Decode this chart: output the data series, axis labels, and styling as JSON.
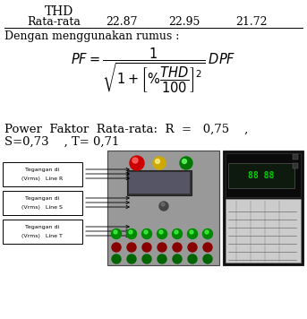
{
  "title_thd": "THD",
  "row_label": "Rata-rata",
  "values": [
    "22.87",
    "22.95",
    "21.72"
  ],
  "formula_text": "Dengan menggunakan rumus :",
  "power_factor_line1": "Power  Faktor  Rata-rata:  R  =   0,75    ,",
  "power_factor_line2": "S=0,73    , T= 0,71",
  "box_labels": [
    "Tegangan di\n(Vrms)   Line R",
    "Tegangan di\n(Vrms)   Line S",
    "Tegangan di\n(Vrms)   Line T"
  ],
  "bg_color": "#ffffff",
  "text_color": "#000000"
}
